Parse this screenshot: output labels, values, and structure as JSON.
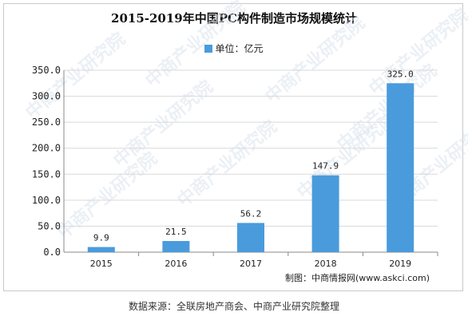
{
  "chart_data": {
    "type": "bar",
    "title": "2015-2019年中国PC构件制造市场规模统计",
    "legend": "单位：亿元",
    "categories": [
      "2015",
      "2016",
      "2017",
      "2018",
      "2019"
    ],
    "values": [
      9.9,
      21.5,
      56.2,
      147.9,
      325.0
    ],
    "value_labels": [
      "9.9",
      "21.5",
      "56.2",
      "147.9",
      "325.0"
    ],
    "ylim": [
      0,
      350
    ],
    "yticks": [
      "0.0",
      "50.0",
      "100.0",
      "150.0",
      "200.0",
      "250.0",
      "300.0",
      "350.0"
    ],
    "grid": true,
    "bar_color": "#4a9bdc"
  },
  "credit": "制图：中商情报网(www.askci.com)",
  "source": "数据来源：全联房地产商会、中商产业研究院整理",
  "watermark": "中商产业研究院"
}
